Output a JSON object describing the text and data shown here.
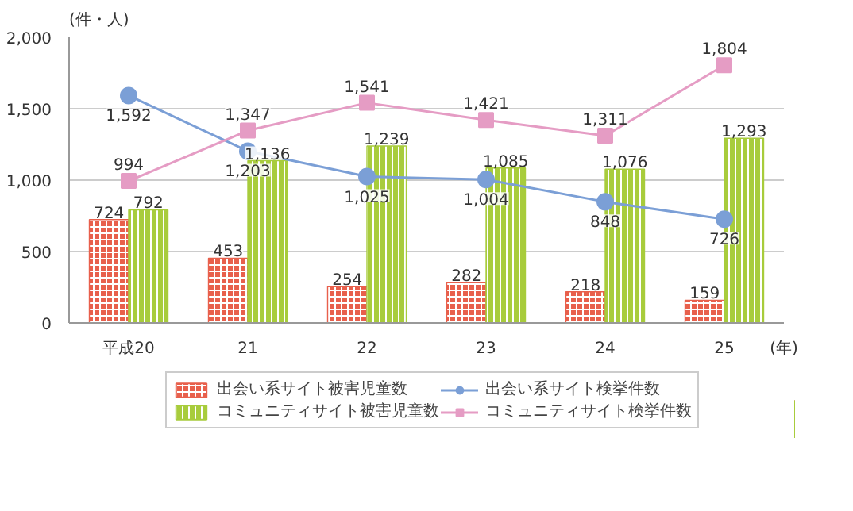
{
  "chart_data": {
    "type": "bar",
    "ylabel": "(件・人)",
    "xlabel": "(年)",
    "categories": [
      "平成20",
      "21",
      "22",
      "23",
      "24",
      "25"
    ],
    "series": [
      {
        "name": "出会い系サイト被害児童数",
        "color": "#e8604c",
        "values": [
          724,
          453,
          254,
          282,
          218,
          159
        ],
        "value_labels": [
          "724",
          "453",
          "254",
          "282",
          "218",
          "159"
        ]
      },
      {
        "name": "コミュニティサイト被害児童数",
        "color": "#a8cc3c",
        "values": [
          792,
          1136,
          1239,
          1085,
          1076,
          1293
        ],
        "value_labels": [
          "792",
          "1,136",
          "1,239",
          "1,085",
          "1,076",
          "1,293"
        ]
      },
      {
        "name": "出会い系サイト検挙件数",
        "type": "line",
        "color": "#7b9fd6",
        "marker": "circle",
        "values": [
          1592,
          1203,
          1025,
          1004,
          848,
          726
        ],
        "value_labels": [
          "1,592",
          "1,203",
          "1,025",
          "1,004",
          "848",
          "726"
        ]
      },
      {
        "name": "コミュニティサイト検挙件数",
        "type": "line",
        "color": "#e59cc4",
        "marker": "square",
        "values": [
          994,
          1347,
          1541,
          1421,
          1311,
          1804
        ],
        "value_labels": [
          "994",
          "1,347",
          "1,541",
          "1,421",
          "1,311",
          "1,804"
        ]
      }
    ],
    "ylim": [
      0,
      2000
    ],
    "yticks": [
      0,
      {
        "value": 500,
        "label": "500"
      },
      {
        "value": 1000,
        "label": "1,000"
      },
      {
        "value": 1500,
        "label": "1,500"
      },
      {
        "value": 2000,
        "label": "2,000"
      }
    ],
    "grid": "y",
    "legend": "bottom"
  }
}
